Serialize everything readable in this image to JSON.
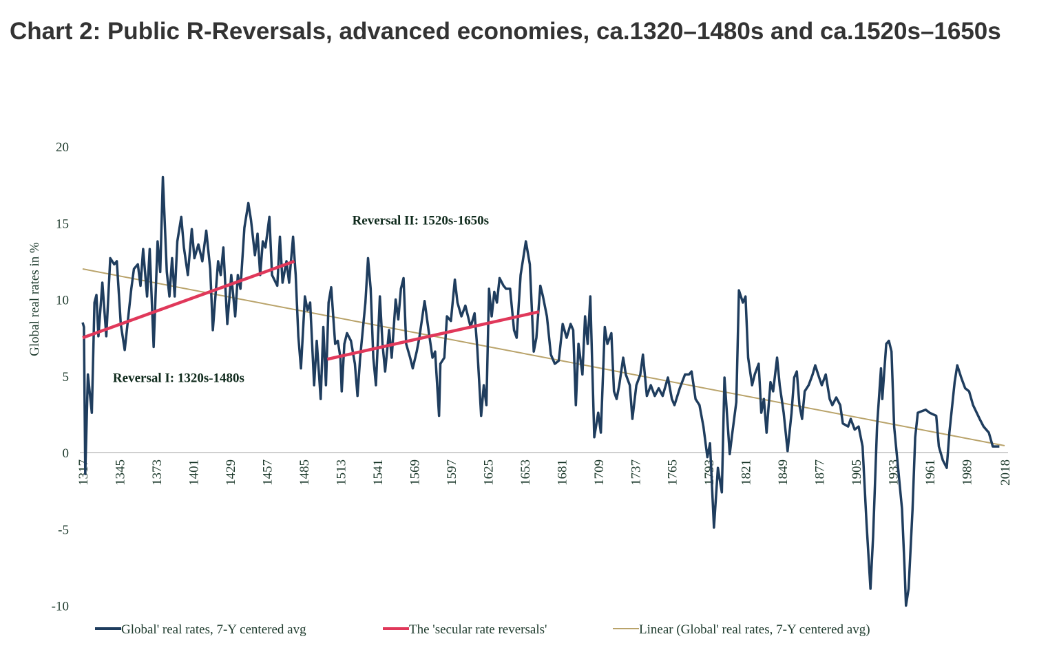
{
  "chart_data": {
    "type": "line",
    "title": "Chart 2: Public R-Reversals, advanced economies, ca.1320–1480s and ca.1520s–1650s",
    "ylabel": "Global real rates in %",
    "xlabel": "",
    "ylim": [
      -10,
      20
    ],
    "xlim": [
      1317,
      2018
    ],
    "yticks": [
      "20",
      "15",
      "10",
      "5",
      "0",
      "-5",
      "-10"
    ],
    "xticks": [
      "1317",
      "1345",
      "1373",
      "1401",
      "1429",
      "1457",
      "1485",
      "1513",
      "1541",
      "1569",
      "1597",
      "1625",
      "1653",
      "1681",
      "1709",
      "1737",
      "1765",
      "1793",
      "1821",
      "1849",
      "1877",
      "1905",
      "1933",
      "1961",
      "1989",
      "2018"
    ],
    "grid": false,
    "legend_position": "bottom",
    "annotations": [
      {
        "text": "Reversal I: 1320s-1480s",
        "x": 1340,
        "y": 4.6
      },
      {
        "text": "Reversal II: 1520s-1650s",
        "x": 1522,
        "y": 14.9
      }
    ],
    "series": [
      {
        "name": "Global' real rates, 7-Y centered avg",
        "color": "#1f3d5e",
        "points": [
          [
            1317,
            8.5
          ],
          [
            1318,
            8.2
          ],
          [
            1319,
            -1.4
          ],
          [
            1321,
            5.1
          ],
          [
            1324,
            2.6
          ],
          [
            1326,
            9.8
          ],
          [
            1327.5,
            10.3
          ],
          [
            1329,
            7.6
          ],
          [
            1332,
            11.1
          ],
          [
            1335,
            7.6
          ],
          [
            1338,
            12.7
          ],
          [
            1341,
            12.3
          ],
          [
            1343,
            12.5
          ],
          [
            1346,
            8.4
          ],
          [
            1349,
            6.7
          ],
          [
            1354,
            10.7
          ],
          [
            1356,
            12.0
          ],
          [
            1359,
            12.3
          ],
          [
            1361,
            10.9
          ],
          [
            1363,
            13.3
          ],
          [
            1366,
            10.2
          ],
          [
            1368,
            13.3
          ],
          [
            1371,
            6.9
          ],
          [
            1374,
            13.8
          ],
          [
            1376,
            11.8
          ],
          [
            1378,
            18.0
          ],
          [
            1381,
            11.8
          ],
          [
            1383,
            10.2
          ],
          [
            1385,
            12.7
          ],
          [
            1387,
            10.2
          ],
          [
            1389,
            13.8
          ],
          [
            1392,
            15.4
          ],
          [
            1394,
            13.4
          ],
          [
            1397,
            11.6
          ],
          [
            1400,
            14.6
          ],
          [
            1402,
            12.7
          ],
          [
            1405,
            13.6
          ],
          [
            1408,
            12.5
          ],
          [
            1411,
            14.5
          ],
          [
            1414,
            12.0
          ],
          [
            1416,
            8.0
          ],
          [
            1420,
            12.5
          ],
          [
            1422,
            11.6
          ],
          [
            1424,
            13.4
          ],
          [
            1427,
            8.4
          ],
          [
            1430,
            11.6
          ],
          [
            1433,
            8.9
          ],
          [
            1435,
            11.6
          ],
          [
            1437,
            10.7
          ],
          [
            1440,
            14.7
          ],
          [
            1443,
            16.3
          ],
          [
            1445,
            15.2
          ],
          [
            1448,
            12.9
          ],
          [
            1450,
            14.3
          ],
          [
            1452,
            11.6
          ],
          [
            1454,
            13.8
          ],
          [
            1456,
            13.4
          ],
          [
            1459,
            15.4
          ],
          [
            1461,
            11.6
          ],
          [
            1465,
            10.9
          ],
          [
            1467,
            14.1
          ],
          [
            1469,
            11.1
          ],
          [
            1472,
            12.5
          ],
          [
            1474,
            11.1
          ],
          [
            1477,
            14.1
          ],
          [
            1479,
            11.6
          ],
          [
            1481,
            7.6
          ],
          [
            1483,
            5.5
          ],
          [
            1486,
            10.2
          ],
          [
            1488,
            9.3
          ],
          [
            1490,
            9.8
          ],
          [
            1493,
            4.4
          ],
          [
            1495,
            7.3
          ],
          [
            1498,
            3.5
          ],
          [
            1500,
            8.2
          ],
          [
            1502,
            4.4
          ],
          [
            1504,
            9.8
          ],
          [
            1506,
            10.8
          ],
          [
            1509,
            7.1
          ],
          [
            1511,
            7.3
          ],
          [
            1513,
            6.2
          ],
          [
            1514,
            4.0
          ],
          [
            1516,
            7.1
          ],
          [
            1518,
            7.8
          ],
          [
            1521,
            7.3
          ],
          [
            1524,
            5.8
          ],
          [
            1526,
            3.7
          ],
          [
            1528,
            6.2
          ],
          [
            1532,
            9.8
          ],
          [
            1534,
            12.7
          ],
          [
            1536,
            10.7
          ],
          [
            1538,
            6.2
          ],
          [
            1540,
            4.4
          ],
          [
            1543,
            10.2
          ],
          [
            1545,
            7.1
          ],
          [
            1547,
            5.3
          ],
          [
            1550,
            8.0
          ],
          [
            1552,
            6.2
          ],
          [
            1555,
            10.0
          ],
          [
            1557,
            8.7
          ],
          [
            1559,
            10.7
          ],
          [
            1561,
            11.4
          ],
          [
            1563,
            7.1
          ],
          [
            1566,
            6.2
          ],
          [
            1568,
            5.5
          ],
          [
            1571,
            6.6
          ],
          [
            1573,
            7.5
          ],
          [
            1577,
            9.9
          ],
          [
            1580,
            8.0
          ],
          [
            1583,
            6.2
          ],
          [
            1585,
            6.6
          ],
          [
            1588,
            2.4
          ],
          [
            1589,
            5.8
          ],
          [
            1592,
            6.2
          ],
          [
            1594,
            8.9
          ],
          [
            1597,
            8.6
          ],
          [
            1600,
            11.3
          ],
          [
            1602,
            9.8
          ],
          [
            1605,
            8.9
          ],
          [
            1608,
            9.6
          ],
          [
            1612,
            8.2
          ],
          [
            1615,
            9.1
          ],
          [
            1617,
            6.9
          ],
          [
            1620,
            2.4
          ],
          [
            1622,
            4.4
          ],
          [
            1624,
            3.1
          ],
          [
            1626,
            10.7
          ],
          [
            1628,
            8.9
          ],
          [
            1630,
            10.5
          ],
          [
            1632,
            9.8
          ],
          [
            1634,
            11.4
          ],
          [
            1637,
            10.9
          ],
          [
            1639,
            10.7
          ],
          [
            1642,
            10.7
          ],
          [
            1645,
            8.0
          ],
          [
            1647,
            7.5
          ],
          [
            1650,
            11.6
          ],
          [
            1654,
            13.8
          ],
          [
            1657,
            12.3
          ],
          [
            1660,
            6.6
          ],
          [
            1662,
            7.5
          ],
          [
            1665,
            10.9
          ],
          [
            1667,
            10.2
          ],
          [
            1670,
            8.9
          ],
          [
            1673,
            6.4
          ],
          [
            1676,
            5.8
          ],
          [
            1679,
            6.0
          ],
          [
            1682,
            8.4
          ],
          [
            1685,
            7.5
          ],
          [
            1688,
            8.4
          ],
          [
            1690,
            8.0
          ],
          [
            1692,
            3.1
          ],
          [
            1694,
            7.1
          ],
          [
            1697,
            5.1
          ],
          [
            1699,
            8.9
          ],
          [
            1701,
            7.1
          ],
          [
            1703,
            10.2
          ],
          [
            1706,
            1.0
          ],
          [
            1709,
            2.6
          ],
          [
            1711,
            1.3
          ],
          [
            1714,
            8.2
          ],
          [
            1716,
            7.1
          ],
          [
            1719,
            7.8
          ],
          [
            1721,
            4.0
          ],
          [
            1723,
            3.5
          ],
          [
            1725,
            4.4
          ],
          [
            1728,
            6.2
          ],
          [
            1730,
            5.1
          ],
          [
            1733,
            4.4
          ],
          [
            1735,
            2.2
          ],
          [
            1738,
            4.4
          ],
          [
            1741,
            5.1
          ],
          [
            1743,
            6.4
          ],
          [
            1746,
            3.7
          ],
          [
            1749,
            4.4
          ],
          [
            1752,
            3.7
          ],
          [
            1755,
            4.2
          ],
          [
            1758,
            3.7
          ],
          [
            1762,
            4.9
          ],
          [
            1765,
            3.5
          ],
          [
            1767,
            3.1
          ],
          [
            1771,
            4.2
          ],
          [
            1775,
            5.1
          ],
          [
            1778,
            5.1
          ],
          [
            1780,
            5.3
          ],
          [
            1783,
            3.5
          ],
          [
            1786,
            3.1
          ],
          [
            1789,
            1.7
          ],
          [
            1792,
            -0.3
          ],
          [
            1794,
            0.6
          ],
          [
            1797,
            -4.9
          ],
          [
            1800,
            -1.0
          ],
          [
            1803,
            -2.6
          ],
          [
            1805,
            4.9
          ],
          [
            1807,
            2.4
          ],
          [
            1809,
            -0.1
          ],
          [
            1811,
            1.3
          ],
          [
            1814,
            3.3
          ],
          [
            1816,
            10.6
          ],
          [
            1819,
            9.8
          ],
          [
            1821,
            10.2
          ],
          [
            1823,
            6.2
          ],
          [
            1826,
            4.4
          ],
          [
            1828,
            5.1
          ],
          [
            1831,
            5.8
          ],
          [
            1833,
            2.6
          ],
          [
            1835,
            3.5
          ],
          [
            1837,
            1.3
          ],
          [
            1840,
            4.6
          ],
          [
            1842,
            4.0
          ],
          [
            1845,
            6.2
          ],
          [
            1847,
            4.4
          ],
          [
            1850,
            2.6
          ],
          [
            1853,
            0.1
          ],
          [
            1856,
            2.6
          ],
          [
            1858,
            4.9
          ],
          [
            1860,
            5.3
          ],
          [
            1862,
            3.1
          ],
          [
            1864,
            2.2
          ],
          [
            1866,
            4.0
          ],
          [
            1869,
            4.4
          ],
          [
            1872,
            5.1
          ],
          [
            1874,
            5.7
          ],
          [
            1877,
            4.9
          ],
          [
            1879,
            4.4
          ],
          [
            1882,
            5.1
          ],
          [
            1885,
            3.5
          ],
          [
            1887,
            3.1
          ],
          [
            1890,
            3.6
          ],
          [
            1893,
            3.1
          ],
          [
            1895,
            1.9
          ],
          [
            1899,
            1.7
          ],
          [
            1901,
            2.2
          ],
          [
            1904,
            1.5
          ],
          [
            1907,
            1.7
          ],
          [
            1910,
            0.4
          ],
          [
            1913,
            -4.6
          ],
          [
            1916,
            -8.9
          ],
          [
            1918,
            -5.5
          ],
          [
            1921,
            1.7
          ],
          [
            1924,
            5.5
          ],
          [
            1925,
            3.5
          ],
          [
            1928,
            7.1
          ],
          [
            1930,
            7.3
          ],
          [
            1932,
            6.6
          ],
          [
            1934,
            1.7
          ],
          [
            1938,
            -1.9
          ],
          [
            1940,
            -3.7
          ],
          [
            1942,
            -7.7
          ],
          [
            1943,
            -10.0
          ],
          [
            1945,
            -8.9
          ],
          [
            1948,
            -3.7
          ],
          [
            1950,
            1.0
          ],
          [
            1952,
            2.6
          ],
          [
            1955,
            2.7
          ],
          [
            1958,
            2.8
          ],
          [
            1961,
            2.6
          ],
          [
            1966,
            2.4
          ],
          [
            1968,
            0.4
          ],
          [
            1971,
            -0.5
          ],
          [
            1974,
            -1.0
          ],
          [
            1976,
            1.3
          ],
          [
            1980,
            4.6
          ],
          [
            1982,
            5.7
          ],
          [
            1985,
            4.9
          ],
          [
            1988,
            4.2
          ],
          [
            1991,
            4.0
          ],
          [
            1994,
            3.1
          ],
          [
            1999,
            2.2
          ],
          [
            2002,
            1.7
          ],
          [
            2006,
            1.3
          ],
          [
            2009,
            0.4
          ],
          [
            2012,
            0.4
          ],
          [
            2014,
            0.4
          ]
        ]
      },
      {
        "name": "The 'secular rate reversals'",
        "color": "#e0385a",
        "segments": [
          [
            [
              1317,
              7.5
            ],
            [
              1478,
              12.5
            ]
          ],
          [
            [
              1503,
              6.1
            ],
            [
              1664,
              9.2
            ]
          ]
        ]
      },
      {
        "name": "Linear (Global' real rates, 7-Y centered avg)",
        "color": "#b9a36a",
        "points": [
          [
            1317,
            12.0
          ],
          [
            2018,
            0.45
          ]
        ]
      }
    ]
  }
}
